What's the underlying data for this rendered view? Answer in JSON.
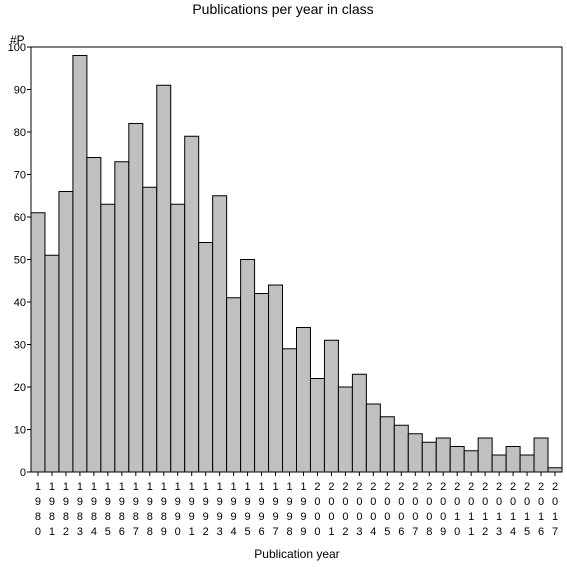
{
  "chart_data": {
    "type": "bar",
    "title": "Publications per year in class",
    "ylabel": "#P",
    "xlabel": "Publication year",
    "ylim": [
      0,
      100
    ],
    "yticks": [
      0,
      10,
      20,
      30,
      40,
      50,
      60,
      70,
      80,
      90,
      100
    ],
    "grid": false,
    "bar_color": "#c0c0c0",
    "categories": [
      "1980",
      "1981",
      "1982",
      "1983",
      "1984",
      "1985",
      "1986",
      "1987",
      "1988",
      "1989",
      "1990",
      "1991",
      "1992",
      "1993",
      "1994",
      "1995",
      "1996",
      "1997",
      "1998",
      "1999",
      "2000",
      "2001",
      "2002",
      "2003",
      "2004",
      "2005",
      "2006",
      "2007",
      "2008",
      "2009",
      "2010",
      "2011",
      "2012",
      "2013",
      "2014",
      "2015",
      "2016",
      "2017"
    ],
    "values": [
      61,
      51,
      66,
      98,
      74,
      63,
      73,
      82,
      67,
      91,
      63,
      79,
      54,
      65,
      41,
      50,
      42,
      44,
      29,
      34,
      22,
      31,
      20,
      23,
      16,
      13,
      11,
      9,
      7,
      8,
      6,
      5,
      8,
      4,
      6,
      4,
      8,
      1
    ]
  }
}
